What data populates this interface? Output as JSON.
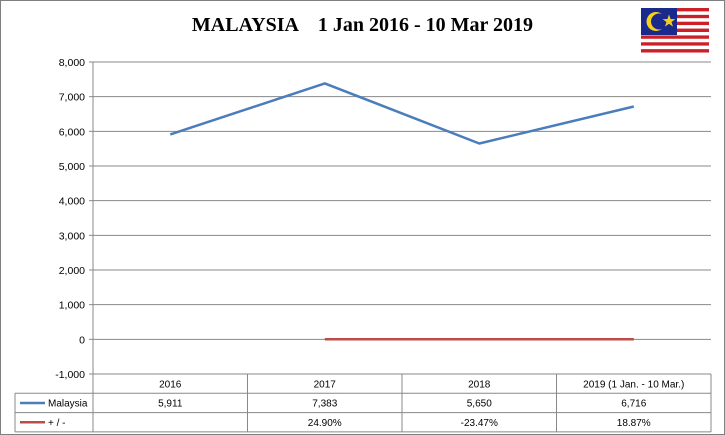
{
  "chart_data": {
    "type": "line",
    "title": "MALAYSIA    1 Jan 2016 - 10 Mar 2019",
    "categories": [
      "2016",
      "2017",
      "2018",
      "2019 (1 Jan. - 10 Mar.)"
    ],
    "ylim": [
      -1000,
      8000
    ],
    "ytick_values": [
      -1000,
      0,
      1000,
      2000,
      3000,
      4000,
      5000,
      6000,
      7000,
      8000
    ],
    "yticks": [
      "-1,000",
      "0",
      "1,000",
      "2,000",
      "3,000",
      "4,000",
      "5,000",
      "6,000",
      "7,000",
      "8,000"
    ],
    "grid": true,
    "series": [
      {
        "name": "Malaysia",
        "color": "#4a7ebb",
        "values": [
          5911,
          7383,
          5650,
          6716
        ],
        "labels": [
          "5,911",
          "7,383",
          "5,650",
          "6,716"
        ]
      },
      {
        "name": "+ / -",
        "color": "#be4b48",
        "values": [
          null,
          0.249,
          -0.2347,
          0.1887
        ],
        "labels": [
          "",
          "24.90%",
          "-23.47%",
          "18.87%"
        ]
      }
    ],
    "data_table": true
  },
  "flag": {
    "icon": "malaysia-flag-icon"
  }
}
